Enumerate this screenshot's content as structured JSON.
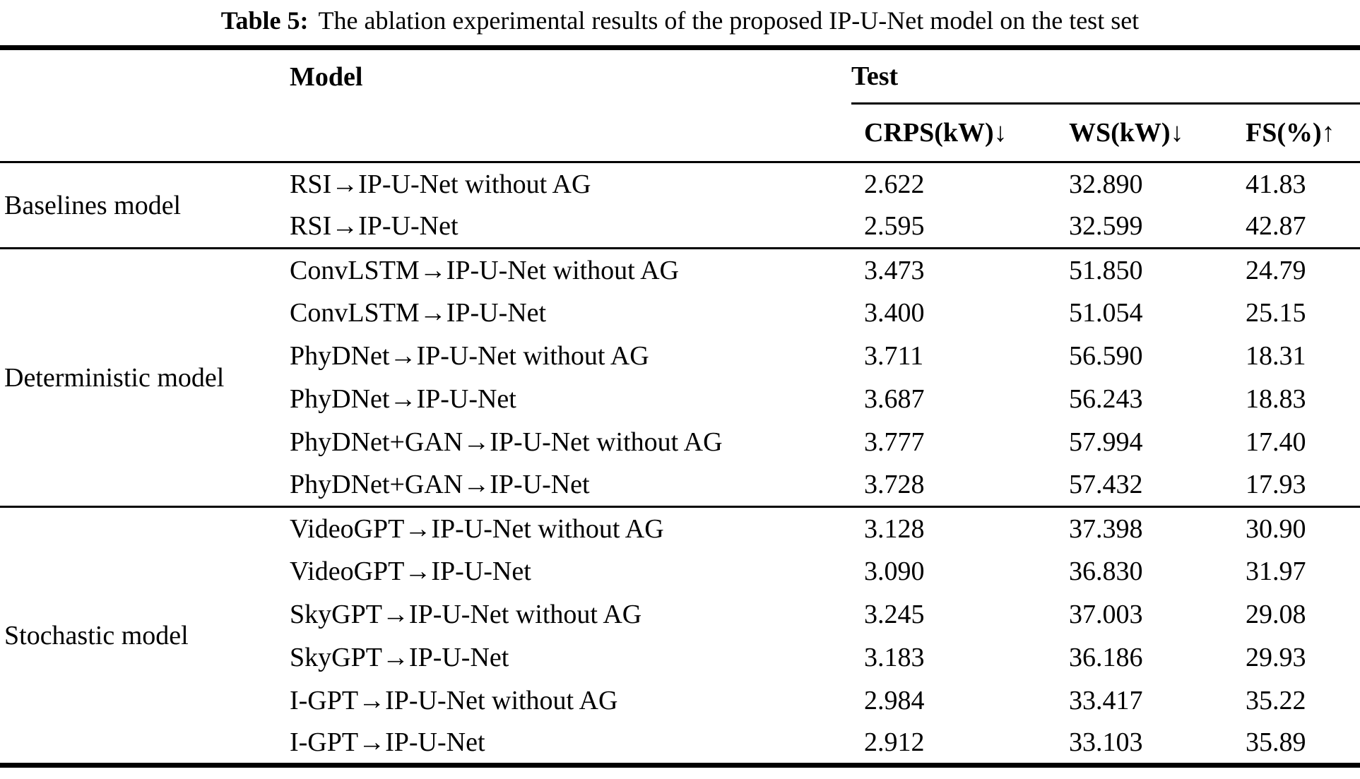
{
  "page": {
    "caption_label": "Table 5:",
    "caption_text": "The ablation experimental results of the proposed IP-U-Net model on the test set"
  },
  "table": {
    "model_header": "Model",
    "test_header": "Test",
    "metric_headers": [
      "CRPS(kW)↓",
      "WS(kW)↓",
      "FS(%)↑"
    ],
    "groups": [
      {
        "label": "Baselines model",
        "rows": [
          {
            "model": "RSI→IP-U-Net without AG",
            "crps": "2.622",
            "ws": "32.890",
            "fs": "41.83"
          },
          {
            "model": "RSI→IP-U-Net",
            "crps": "2.595",
            "ws": "32.599",
            "fs": "42.87"
          }
        ]
      },
      {
        "label": "Deterministic model",
        "rows": [
          {
            "model": "ConvLSTM→IP-U-Net without AG",
            "crps": "3.473",
            "ws": "51.850",
            "fs": "24.79"
          },
          {
            "model": "ConvLSTM→IP-U-Net",
            "crps": "3.400",
            "ws": "51.054",
            "fs": "25.15"
          },
          {
            "model": "PhyDNet→IP-U-Net without AG",
            "crps": "3.711",
            "ws": "56.590",
            "fs": "18.31"
          },
          {
            "model": "PhyDNet→IP-U-Net",
            "crps": "3.687",
            "ws": "56.243",
            "fs": "18.83"
          },
          {
            "model": "PhyDNet+GAN→IP-U-Net without AG",
            "crps": "3.777",
            "ws": "57.994",
            "fs": "17.40"
          },
          {
            "model": "PhyDNet+GAN→IP-U-Net",
            "crps": "3.728",
            "ws": "57.432",
            "fs": "17.93"
          }
        ]
      },
      {
        "label": "Stochastic model",
        "rows": [
          {
            "model": "VideoGPT→IP-U-Net without AG",
            "crps": "3.128",
            "ws": "37.398",
            "fs": "30.90"
          },
          {
            "model": "VideoGPT→IP-U-Net",
            "crps": "3.090",
            "ws": "36.830",
            "fs": "31.97"
          },
          {
            "model": "SkyGPT→IP-U-Net without AG",
            "crps": "3.245",
            "ws": "37.003",
            "fs": "29.08"
          },
          {
            "model": "SkyGPT→IP-U-Net",
            "crps": "3.183",
            "ws": "36.186",
            "fs": "29.93"
          },
          {
            "model": "I-GPT→IP-U-Net without AG",
            "crps": "2.984",
            "ws": "33.417",
            "fs": "35.22"
          },
          {
            "model": "I-GPT→IP-U-Net",
            "crps": "2.912",
            "ws": "33.103",
            "fs": "35.89"
          }
        ]
      }
    ]
  },
  "colors": {
    "text": "#000000",
    "background": "#ffffff",
    "rule": "#000000"
  }
}
